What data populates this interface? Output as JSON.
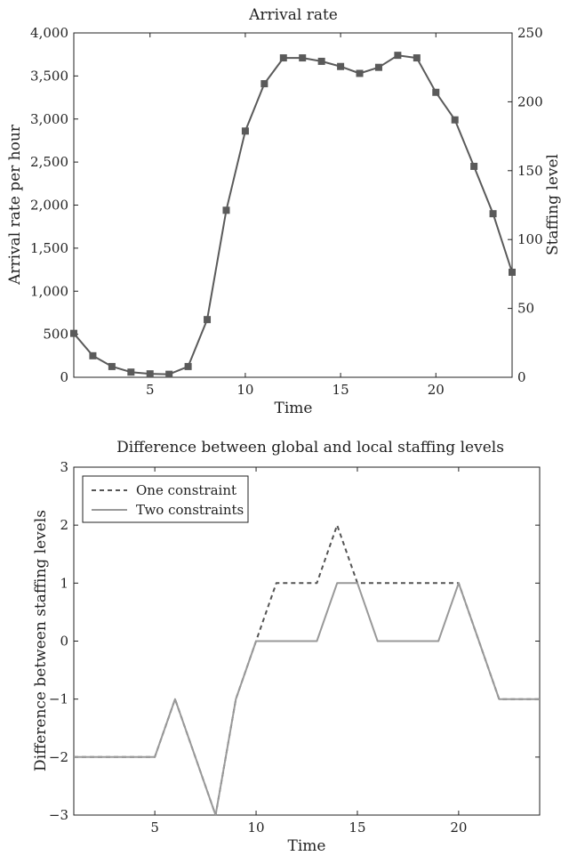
{
  "chart_data": [
    {
      "type": "line",
      "title": "Arrival rate",
      "xlabel": "Time",
      "ylabel": "Arrival rate per hour",
      "y2label": "Staffing level",
      "xlim": [
        1,
        24
      ],
      "ylim": [
        0,
        4000
      ],
      "y2lim": [
        0,
        250
      ],
      "xticks": [
        5,
        10,
        15,
        20
      ],
      "yticks": [
        0,
        500,
        1000,
        1500,
        2000,
        2500,
        3000,
        3500,
        4000
      ],
      "ytick_labels": [
        "0",
        "500",
        "1,000",
        "1,500",
        "2,000",
        "2,500",
        "3,000",
        "3,500",
        "4,000"
      ],
      "y2ticks": [
        0,
        50,
        100,
        150,
        200,
        250
      ],
      "y2tick_labels": [
        "0",
        "50",
        "100",
        "150",
        "200",
        "250"
      ],
      "grid": false,
      "series": [
        {
          "marker": "square",
          "color": "#5a5a5a",
          "x": [
            1,
            2,
            3,
            4,
            5,
            6,
            7,
            8,
            9,
            10,
            11,
            12,
            13,
            14,
            15,
            16,
            17,
            18,
            19,
            20,
            21,
            22,
            23,
            24
          ],
          "values": [
            510,
            250,
            125,
            60,
            40,
            35,
            125,
            670,
            1940,
            2860,
            3410,
            3710,
            3710,
            3670,
            3610,
            3530,
            3600,
            3740,
            3710,
            3310,
            2990,
            2450,
            1900,
            1220
          ]
        }
      ]
    },
    {
      "type": "line",
      "title": "Difference between global and local staffing levels",
      "xlabel": "Time",
      "ylabel": "Difference between staffing levels",
      "xlim": [
        1,
        24
      ],
      "ylim": [
        -3,
        3
      ],
      "xticks": [
        5,
        10,
        15,
        20
      ],
      "yticks": [
        -3,
        -2,
        -1,
        0,
        1,
        2,
        3
      ],
      "ytick_labels": [
        "−3",
        "−2",
        "−1",
        "0",
        "1",
        "2",
        "3"
      ],
      "grid": false,
      "legend_position": "top-left",
      "series": [
        {
          "name": "One constraint",
          "style": "dashed",
          "color": "#555555",
          "x": [
            1,
            2,
            3,
            4,
            5,
            6,
            7,
            8,
            9,
            10,
            11,
            12,
            13,
            14,
            15,
            16,
            17,
            18,
            19,
            20,
            21,
            22,
            23,
            24
          ],
          "values": [
            -2,
            -2,
            -2,
            -2,
            -2,
            -1,
            -2,
            -3,
            -1,
            0,
            1,
            1,
            1,
            2,
            1,
            1,
            1,
            1,
            1,
            1,
            0,
            -1,
            -1,
            -1
          ]
        },
        {
          "name": "Two constraints",
          "style": "solid",
          "color": "#999999",
          "x": [
            1,
            2,
            3,
            4,
            5,
            6,
            7,
            8,
            9,
            10,
            11,
            12,
            13,
            14,
            15,
            16,
            17,
            18,
            19,
            20,
            21,
            22,
            23,
            24
          ],
          "values": [
            -2,
            -2,
            -2,
            -2,
            -2,
            -1,
            -2,
            -3,
            -1,
            0,
            0,
            0,
            0,
            1,
            1,
            0,
            0,
            0,
            0,
            1,
            0,
            -1,
            -1,
            -1
          ]
        }
      ]
    }
  ]
}
